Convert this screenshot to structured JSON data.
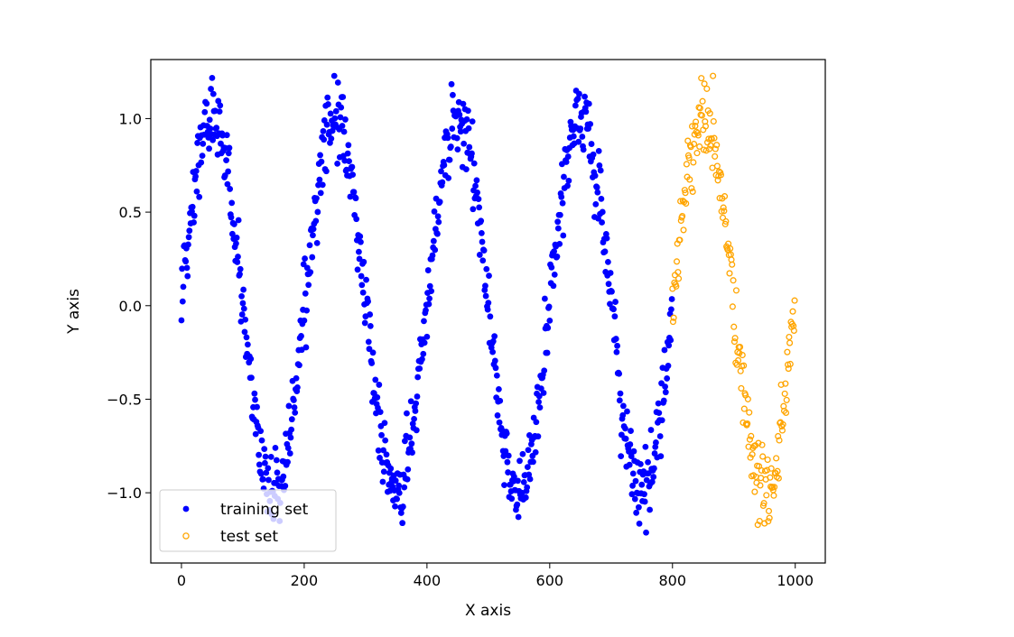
{
  "chart_data": {
    "type": "scatter",
    "title": "",
    "xlabel": "X axis",
    "ylabel": "Y axis",
    "xlim": [
      -49.95,
      1048.95
    ],
    "ylim": [
      -1.3755,
      1.3155
    ],
    "xticks": [
      0,
      200,
      400,
      600,
      800,
      1000
    ],
    "yticks": [
      -1.0,
      -0.5,
      0.0,
      0.5,
      1.0
    ],
    "xtick_labels": [
      "0",
      "200",
      "400",
      "600",
      "800",
      "1000"
    ],
    "ytick_labels": [
      "−1.0",
      "−0.5",
      "0.0",
      "0.5",
      "1.0"
    ],
    "grid": false,
    "legend_position": "lower-left",
    "noise_seed": 17,
    "series": [
      {
        "name": "training set",
        "marker": "filled-circle",
        "color": "#0000ff",
        "x_range": [
          0,
          799
        ],
        "y_formula": "sin(2*pi*x/200) + noise(sd 0.1)"
      },
      {
        "name": "test set",
        "marker": "hollow-circle",
        "color": "#ffa500",
        "x_range": [
          800,
          999
        ],
        "y_formula": "sin(2*pi*x/200) + noise(sd 0.1)"
      }
    ]
  }
}
